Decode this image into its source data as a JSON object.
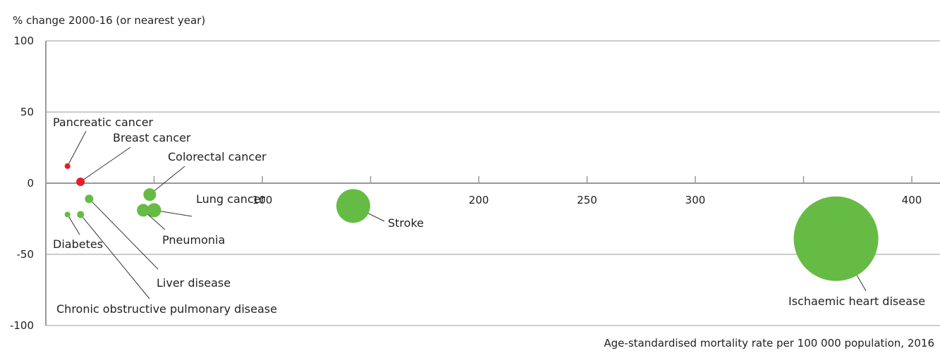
{
  "chart_data": {
    "type": "scatter",
    "title": "",
    "ylabel": "% change 2000-16 (or nearest year)",
    "xlabel": "Age-standardised mortality rate per 100 000 population, 2016",
    "xlim": [
      0,
      410
    ],
    "ylim": [
      -100,
      100
    ],
    "xticks": [
      0,
      50,
      100,
      150,
      200,
      250,
      300,
      350,
      400
    ],
    "xtick_labels": [
      "100",
      "200",
      "250",
      "300",
      "400"
    ],
    "xtick_label_values": [
      100,
      200,
      250,
      300,
      400
    ],
    "yticks": [
      100,
      50,
      0,
      -50,
      -100
    ],
    "ytick_labels": [
      "100",
      "50",
      "0",
      "-50",
      "-100"
    ],
    "grid": "horizontal",
    "colors": {
      "increase": "#e41e26",
      "decrease": "#66bb44",
      "axis": "#999999",
      "grid": "#999999"
    },
    "points": [
      {
        "label": "Pancreatic cancer",
        "x": 10,
        "y": 12,
        "size": 4,
        "color": "#e41e26"
      },
      {
        "label": "Breast cancer",
        "x": 16,
        "y": 1,
        "size": 6,
        "color": "#e41e26"
      },
      {
        "label": "Colorectal cancer",
        "x": 48,
        "y": -8,
        "size": 9,
        "color": "#66bb44"
      },
      {
        "label": "Liver disease",
        "x": 20,
        "y": -11,
        "size": 6,
        "color": "#66bb44"
      },
      {
        "label": "Lung cancer",
        "x": 50,
        "y": -19,
        "size": 10,
        "color": "#66bb44"
      },
      {
        "label": "Pneumonia",
        "x": 45,
        "y": -19,
        "size": 9,
        "color": "#66bb44"
      },
      {
        "label": "Diabetes",
        "x": 10,
        "y": -22,
        "size": 4,
        "color": "#66bb44"
      },
      {
        "label": "Chronic obstructive pulmonary disease",
        "x": 16,
        "y": -22,
        "size": 5,
        "color": "#66bb44"
      },
      {
        "label": "Stroke",
        "x": 142,
        "y": -16,
        "size": 24,
        "color": "#66bb44"
      },
      {
        "label": "Ischaemic heart disease",
        "x": 365,
        "y": -39,
        "size": 60,
        "color": "#66bb44"
      }
    ]
  }
}
